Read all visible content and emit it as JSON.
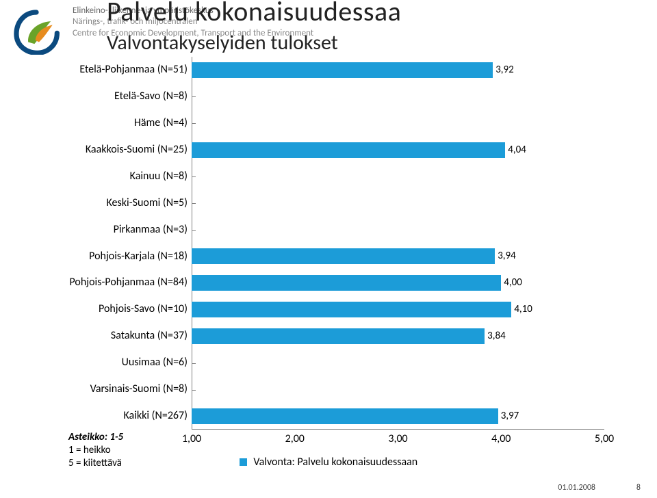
{
  "org": {
    "fi": "Elinkeino-, liikenne- ja ympäristökeskus",
    "se": "Närings-, trafik- och miljöcentralen",
    "en": "Centre for Economic Development, Transport and the Environment"
  },
  "titles": {
    "line1": "Palvelu kokonaisuudessaa",
    "line2": "Valvontakyselyiden tulokset"
  },
  "chart": {
    "type": "bar-horizontal",
    "xlim": [
      1.0,
      5.0
    ],
    "xtick_step": 1.0,
    "xtick_labels": [
      "1,00",
      "2,00",
      "3,00",
      "4,00",
      "5,00"
    ],
    "bar_color": "#1c9cd8",
    "axis_color": "#7f7f7f",
    "categories": [
      {
        "label": "Etelä-Pohjanmaa (N=51)",
        "value": 3.92,
        "value_label": "3,92"
      },
      {
        "label": "Etelä-Savo (N=8)",
        "value": null,
        "value_label": ""
      },
      {
        "label": "Häme (N=4)",
        "value": null,
        "value_label": ""
      },
      {
        "label": "Kaakkois-Suomi (N=25)",
        "value": 4.04,
        "value_label": "4,04"
      },
      {
        "label": "Kainuu (N=8)",
        "value": null,
        "value_label": ""
      },
      {
        "label": "Keski-Suomi (N=5)",
        "value": null,
        "value_label": ""
      },
      {
        "label": "Pirkanmaa (N=3)",
        "value": null,
        "value_label": ""
      },
      {
        "label": "Pohjois-Karjala (N=18)",
        "value": 3.94,
        "value_label": "3,94"
      },
      {
        "label": "Pohjois-Pohjanmaa (N=84)",
        "value": 4.0,
        "value_label": "4,00"
      },
      {
        "label": "Pohjois-Savo (N=10)",
        "value": 4.1,
        "value_label": "4,10"
      },
      {
        "label": "Satakunta (N=37)",
        "value": 3.84,
        "value_label": "3,84"
      },
      {
        "label": "Uusimaa (N=6)",
        "value": null,
        "value_label": ""
      },
      {
        "label": "Varsinais-Suomi (N=8)",
        "value": null,
        "value_label": ""
      },
      {
        "label": "Kaikki (N=267)",
        "value": 3.97,
        "value_label": "3,97"
      }
    ],
    "legend_label": "Valvonta: Palvelu kokonaisuudessaan"
  },
  "scale_note": {
    "header": "Asteikko: 1-5",
    "line1": "1 = heikko",
    "line2": "5 = kiitettävä"
  },
  "footer": {
    "date": "01.01.2008",
    "page": "8"
  },
  "logo_colors": {
    "outer": "#0b4a7f",
    "leaf_green": "#6aa329",
    "leaf_orange": "#e78c1e"
  }
}
